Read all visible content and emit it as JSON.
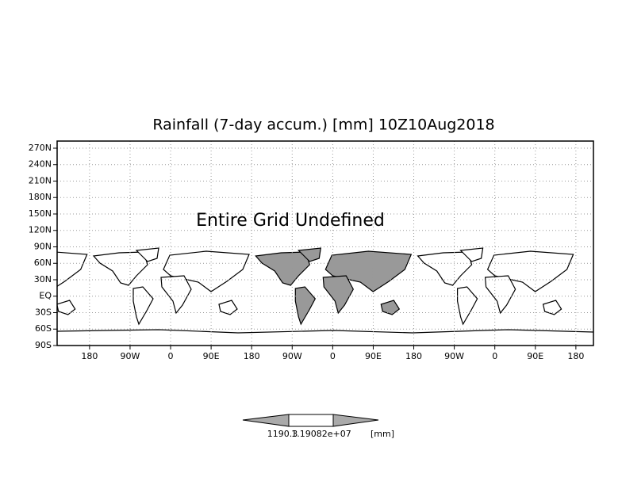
{
  "chart_data": {
    "type": "map",
    "title": "Rainfall (7-day accum.) [mm] 10Z10Aug2018",
    "annotation": "Entire Grid Undefined",
    "xlim": [
      108,
      1299
    ],
    "ylim": [
      -90,
      283
    ],
    "xticks": [
      {
        "value": 180,
        "label": "180"
      },
      {
        "value": 270,
        "label": "90W"
      },
      {
        "value": 360,
        "label": "0"
      },
      {
        "value": 450,
        "label": "90E"
      },
      {
        "value": 540,
        "label": "180"
      },
      {
        "value": 630,
        "label": "90W"
      },
      {
        "value": 720,
        "label": "0"
      },
      {
        "value": 810,
        "label": "90E"
      },
      {
        "value": 900,
        "label": "180"
      },
      {
        "value": 990,
        "label": "90W"
      },
      {
        "value": 1080,
        "label": "0"
      },
      {
        "value": 1170,
        "label": "90E"
      },
      {
        "value": 1260,
        "label": "180"
      }
    ],
    "yticks": [
      {
        "value": 270,
        "label": "270N"
      },
      {
        "value": 240,
        "label": "240N"
      },
      {
        "value": 210,
        "label": "210N"
      },
      {
        "value": 180,
        "label": "180N"
      },
      {
        "value": 150,
        "label": "150N"
      },
      {
        "value": 120,
        "label": "120N"
      },
      {
        "value": 90,
        "label": "90N"
      },
      {
        "value": 60,
        "label": "60N"
      },
      {
        "value": 30,
        "label": "30N"
      },
      {
        "value": 0,
        "label": "EQ"
      },
      {
        "value": -30,
        "label": "30S"
      },
      {
        "value": -60,
        "label": "60S"
      },
      {
        "value": -90,
        "label": "90S"
      }
    ],
    "grid": true,
    "colorbar": {
      "labels": [
        "1190.3",
        "1.19082e+07"
      ],
      "units": "[mm]"
    }
  }
}
